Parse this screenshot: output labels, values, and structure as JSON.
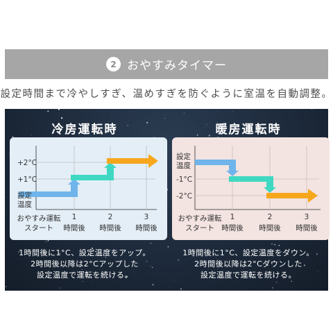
{
  "header": {
    "step_number": "2",
    "title": "おやすみタイマー"
  },
  "description": "設定時間まで冷やしすぎ、温めすぎを防ぐように室温を自動調整。",
  "colors": {
    "header_bg": "#a6a6a6",
    "arrow_blue": "#6fb4ea",
    "arrow_green": "#3fd8c2",
    "arrow_orange": "#f6a71c"
  },
  "cooling": {
    "title": "冷房運転時",
    "y_labels": [
      "+2°C",
      "+1°C",
      "設定",
      "温度"
    ],
    "x_labels": {
      "start_line1": "おやすみ運転",
      "start_line2": "スタート",
      "t1_num": "1",
      "t1_unit": "時間後",
      "t2_num": "2",
      "t2_unit": "時間後",
      "t3_num": "3",
      "t3_unit": "時間後"
    },
    "caption": [
      "1時間後に1°C、設定温度をアップ。",
      "2時間後以降は2°Cアップした",
      "設定温度で運転を続ける。"
    ]
  },
  "heating": {
    "title": "暖房運転時",
    "y_labels": [
      "設定",
      "温度",
      "-1°C",
      "-2°C"
    ],
    "x_labels": {
      "start_line1": "おやすみ運転",
      "start_line2": "スタート",
      "t1_num": "1",
      "t1_unit": "時間後",
      "t2_num": "2",
      "t2_unit": "時間後",
      "t3_num": "3",
      "t3_unit": "時間後"
    },
    "caption": [
      "1時間後に1°C、設定温度をダウン。",
      "2時間後以降は2°Cダウンした",
      "設定温度で運転を続ける。"
    ]
  }
}
